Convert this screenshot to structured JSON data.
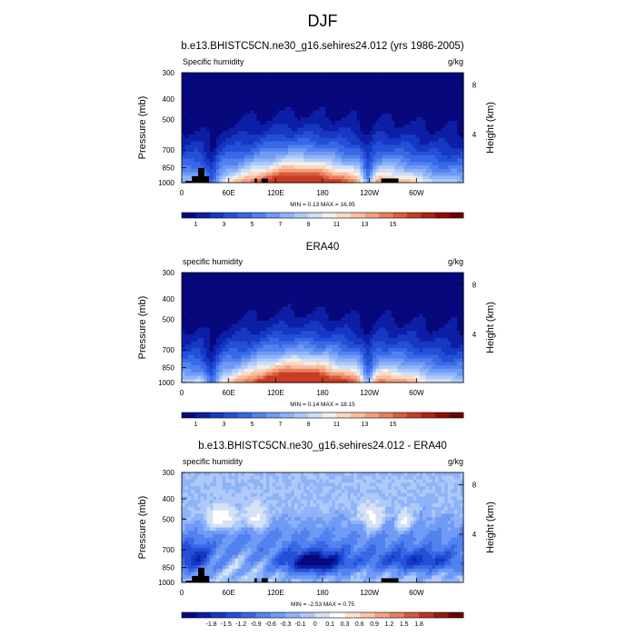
{
  "figure_title": "DJF",
  "colors": {
    "seq": [
      "#08087d",
      "#0d1fa6",
      "#1638c2",
      "#2450d8",
      "#3868e6",
      "#5282ef",
      "#6f9bf5",
      "#8eb3f8",
      "#afcaf9",
      "#cfdff8",
      "#f2efe7",
      "#f9d8c4",
      "#f8bea0",
      "#f2a07e",
      "#ea7f5d",
      "#dc5c3e",
      "#c93c25",
      "#b02214",
      "#900d08",
      "#6e0303"
    ],
    "diff": [
      "#08087d",
      "#0d1fa6",
      "#1638c2",
      "#2450d8",
      "#3868e6",
      "#5282ef",
      "#6f9bf5",
      "#8eb3f8",
      "#afcaf9",
      "#d5e2f5",
      "#ffffff",
      "#fbe3d3",
      "#f8c7ad",
      "#f2a583",
      "#e6805e",
      "#d25a3e",
      "#b83625",
      "#951a10",
      "#6e0303"
    ],
    "land": "#000000"
  },
  "panels": [
    {
      "title": "b.e13.BHISTC5CN.ne30_g16.sehires24.012 (yrs 1986-2005)",
      "left_label": "Specific humidity",
      "right_label": "g/kg",
      "minmax": "MIN =   0.13  MAX =   16.95",
      "colorbar_labels": [
        "1",
        "3",
        "5",
        "7",
        "9",
        "11",
        "13",
        "15"
      ]
    },
    {
      "title": "ERA40",
      "left_label": "specific humidity",
      "right_label": "g/kg",
      "minmax": "MIN =   0.14  MAX =   18.15",
      "colorbar_labels": [
        "1",
        "3",
        "5",
        "7",
        "9",
        "11",
        "13",
        "15"
      ]
    },
    {
      "title": "b.e13.BHISTC5CN.ne30_g16.sehires24.012 - ERA40",
      "left_label": "specific humidity",
      "right_label": "g/kg",
      "minmax": "MIN =   -2.53  MAX =   0.75",
      "colorbar_labels": [
        "-1.8",
        "-1.5",
        "-1.2",
        "-0.9",
        "-0.6",
        "-0.3",
        "-0.1",
        "0",
        "0.1",
        "0.3",
        "0.6",
        "0.9",
        "1.2",
        "1.5",
        "1.8"
      ]
    }
  ],
  "chart_data": [
    {
      "type": "heatmap",
      "title": "b.e13.BHISTC5CN.ne30_g16.sehires24.012 (yrs 1986-2005)",
      "variable": "Specific humidity",
      "units": "g/kg",
      "xlabel": "",
      "ylabel": "Pressure (mb)",
      "y2label": "Height (km)",
      "x_ticks": [
        "0",
        "60E",
        "120E",
        "180",
        "120W",
        "60W"
      ],
      "x_tick_values": [
        0,
        60,
        120,
        180,
        240,
        300
      ],
      "xlim": [
        0,
        360
      ],
      "y_ticks": [
        "300",
        "400",
        "500",
        "700",
        "850",
        "1000"
      ],
      "y_tick_values": [
        300,
        400,
        500,
        700,
        850,
        1000
      ],
      "ylim": [
        1000,
        300
      ],
      "y_scale": "log",
      "y2_ticks": [
        "8",
        "4"
      ],
      "y2_tick_values": [
        8,
        4
      ],
      "min": 0.13,
      "max": 16.95,
      "contour_levels": [
        1,
        2,
        3,
        4,
        5,
        6,
        7,
        8,
        9,
        10,
        11,
        12,
        13,
        14,
        15,
        16
      ],
      "land_mask": true
    },
    {
      "type": "heatmap",
      "title": "ERA40",
      "variable": "specific humidity",
      "units": "g/kg",
      "xlabel": "",
      "ylabel": "Pressure (mb)",
      "y2label": "Height (km)",
      "x_ticks": [
        "0",
        "60E",
        "120E",
        "180",
        "120W",
        "60W"
      ],
      "x_tick_values": [
        0,
        60,
        120,
        180,
        240,
        300
      ],
      "xlim": [
        0,
        360
      ],
      "y_ticks": [
        "300",
        "400",
        "500",
        "700",
        "850",
        "1000"
      ],
      "y_tick_values": [
        300,
        400,
        500,
        700,
        850,
        1000
      ],
      "ylim": [
        1000,
        300
      ],
      "y_scale": "log",
      "y2_ticks": [
        "8",
        "4"
      ],
      "y2_tick_values": [
        8,
        4
      ],
      "min": 0.14,
      "max": 18.15,
      "contour_levels": [
        1,
        2,
        3,
        4,
        5,
        6,
        7,
        8,
        9,
        10,
        11,
        12,
        13,
        14,
        15,
        16
      ],
      "land_mask": false
    },
    {
      "type": "heatmap",
      "title": "b.e13.BHISTC5CN.ne30_g16.sehires24.012 - ERA40",
      "variable": "specific humidity",
      "units": "g/kg",
      "xlabel": "",
      "ylabel": "Pressure (mb)",
      "y2label": "Height (km)",
      "x_ticks": [
        "0",
        "60E",
        "120E",
        "180",
        "120W",
        "60W"
      ],
      "x_tick_values": [
        0,
        60,
        120,
        180,
        240,
        300
      ],
      "xlim": [
        0,
        360
      ],
      "y_ticks": [
        "300",
        "400",
        "500",
        "700",
        "850",
        "1000"
      ],
      "y_tick_values": [
        300,
        400,
        500,
        700,
        850,
        1000
      ],
      "ylim": [
        1000,
        300
      ],
      "y_scale": "log",
      "y2_ticks": [
        "8",
        "4"
      ],
      "y2_tick_values": [
        8,
        4
      ],
      "min": -2.53,
      "max": 0.75,
      "contour_levels": [
        -1.8,
        -1.5,
        -1.2,
        -0.9,
        -0.6,
        -0.3,
        -0.1,
        0,
        0.1,
        0.3,
        0.6,
        0.9,
        1.2,
        1.5,
        1.8
      ],
      "land_mask": true
    }
  ]
}
